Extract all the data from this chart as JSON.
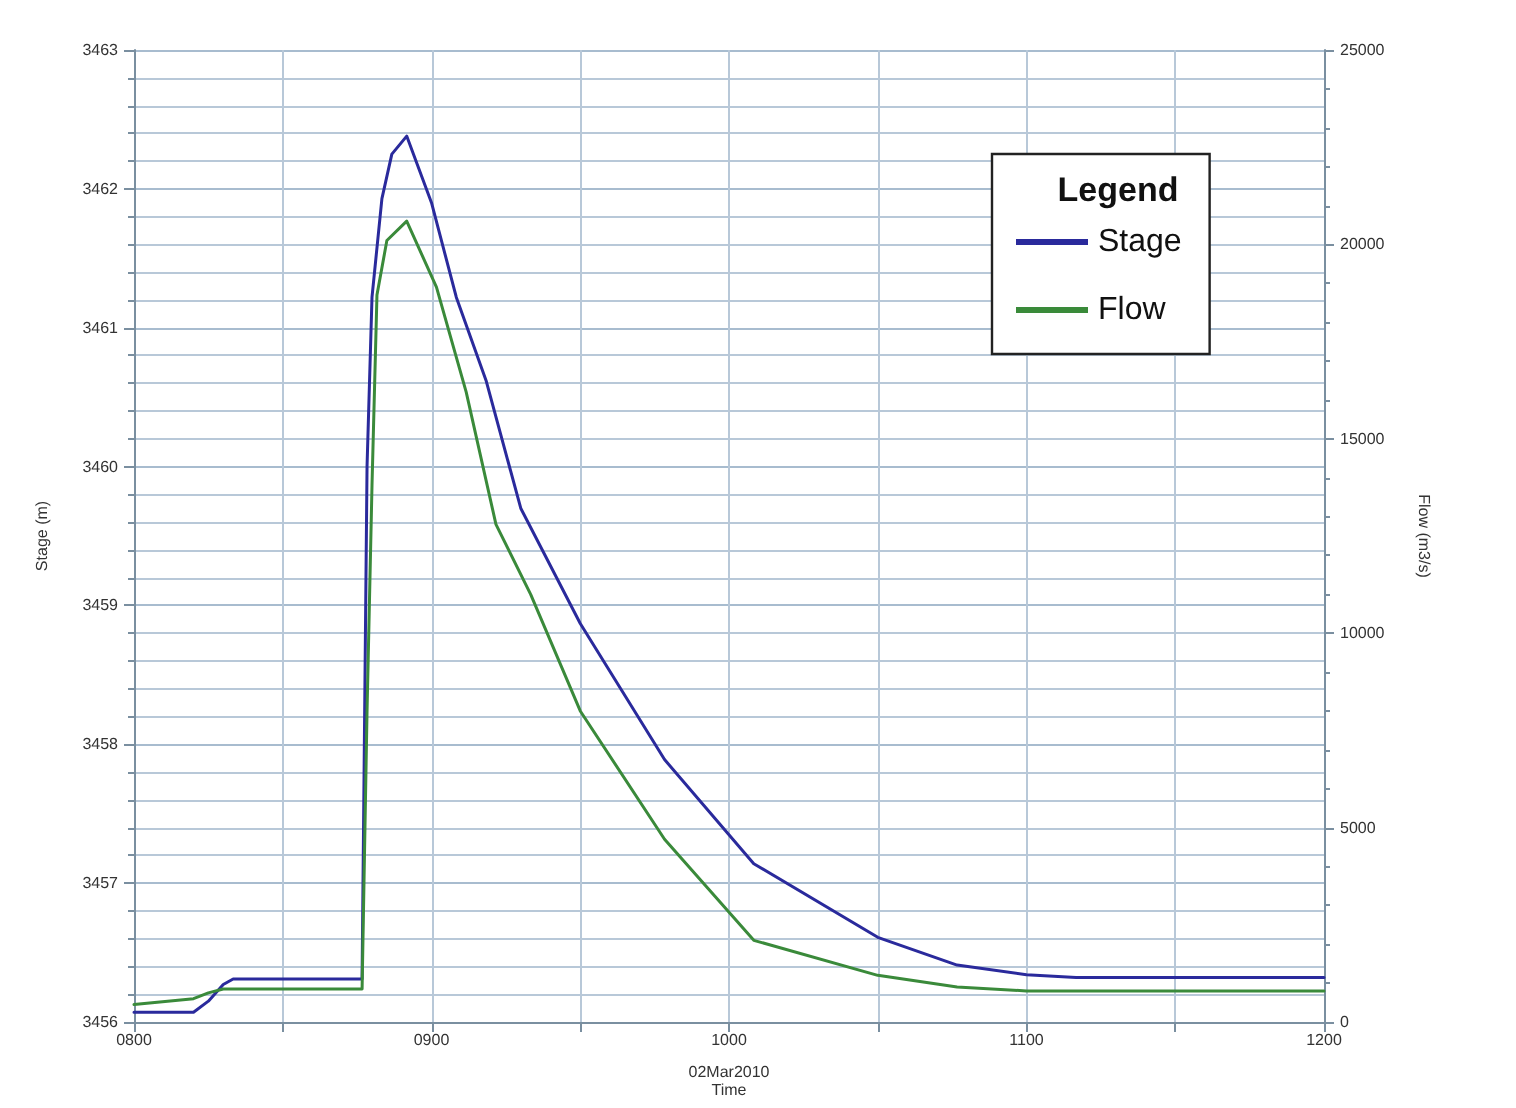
{
  "chart_data": {
    "type": "line",
    "xlabel": "Time",
    "ylabel": "Stage (m)",
    "y2label": "Flow (m3/s)",
    "legend_title": "Legend",
    "annotations": [
      "02Mar2010"
    ],
    "series": [
      {
        "name": "Stage",
        "color": "#2a2a9c",
        "x": [
          "2010-03-02T08:00",
          "2010-03-02T08:12",
          "2010-03-02T08:15",
          "2010-03-02T08:18",
          "2010-03-02T08:20",
          "2010-03-02T08:46",
          "2010-03-02T08:47",
          "2010-03-02T08:48",
          "2010-03-02T08:50",
          "2010-03-02T08:52",
          "2010-03-02T08:55",
          "2010-03-02T09:00",
          "2010-03-02T09:05",
          "2010-03-02T09:11",
          "2010-03-02T09:18",
          "2010-03-02T09:30",
          "2010-03-02T09:47",
          "2010-03-02T10:05",
          "2010-03-02T10:30",
          "2010-03-02T10:46",
          "2010-03-02T11:00",
          "2010-03-02T11:10",
          "2010-03-02T12:00"
        ],
        "values": [
          3456.07,
          3456.07,
          3456.15,
          3456.27,
          3456.31,
          3456.31,
          3460.0,
          3461.22,
          3461.93,
          3462.25,
          3462.38,
          3461.9,
          3461.22,
          3460.62,
          3459.7,
          3458.87,
          3457.89,
          3457.14,
          3456.61,
          3456.41,
          3456.34,
          3456.32,
          3456.32
        ]
      },
      {
        "name": "Flow",
        "color": "#3a8a3a",
        "axis": "y2",
        "x": [
          "2010-03-02T08:00",
          "2010-03-02T08:12",
          "2010-03-02T08:15",
          "2010-03-02T08:18",
          "2010-03-02T08:46",
          "2010-03-02T08:47",
          "2010-03-02T08:48",
          "2010-03-02T08:49",
          "2010-03-02T08:51",
          "2010-03-02T08:55",
          "2010-03-02T09:01",
          "2010-03-02T09:07",
          "2010-03-02T09:13",
          "2010-03-02T09:20",
          "2010-03-02T09:30",
          "2010-03-02T09:47",
          "2010-03-02T10:05",
          "2010-03-02T10:30",
          "2010-03-02T10:46",
          "2010-03-02T11:00",
          "2010-03-02T12:00"
        ],
        "values": [
          450,
          600,
          750,
          850,
          850,
          8000,
          13800,
          18700,
          20100,
          20600,
          18900,
          16200,
          12800,
          11000,
          8000,
          4700,
          2100,
          1200,
          900,
          800,
          800
        ]
      }
    ],
    "xlim": [
      "2010-03-02T08:00",
      "2010-03-02T12:00"
    ],
    "xticks": [
      {
        "value": "2010-03-02T08:00",
        "label": "0800"
      },
      {
        "value": "2010-03-02T08:30",
        "label": null
      },
      {
        "value": "2010-03-02T09:00",
        "label": "0900"
      },
      {
        "value": "2010-03-02T09:30",
        "label": null
      },
      {
        "value": "2010-03-02T10:00",
        "label": "1000"
      },
      {
        "value": "2010-03-02T10:30",
        "label": null
      },
      {
        "value": "2010-03-02T11:00",
        "label": "1100"
      },
      {
        "value": "2010-03-02T11:30",
        "label": null
      },
      {
        "value": "2010-03-02T12:00",
        "label": "1200"
      }
    ],
    "ylim": [
      3456,
      3463
    ],
    "yticks": [
      3456,
      3457,
      3458,
      3459,
      3460,
      3461,
      3462,
      3463
    ],
    "y2lim": [
      0,
      25000
    ],
    "y2ticks": [
      0,
      5000,
      10000,
      15000,
      20000,
      25000
    ],
    "grid": true,
    "legend": "top right",
    "marker": "none",
    "line_style": "solid"
  }
}
